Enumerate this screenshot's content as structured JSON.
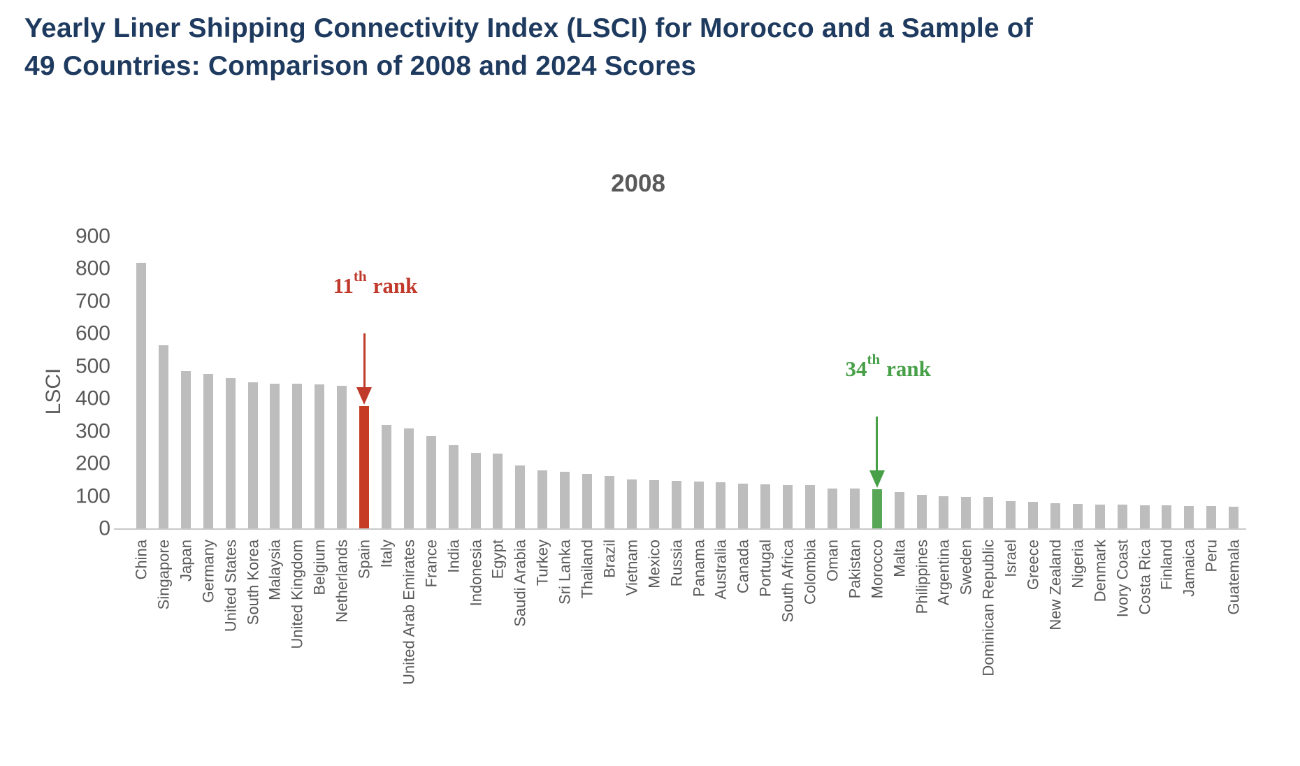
{
  "page": {
    "title_line1": "Yearly Liner Shipping Connectivity Index (LSCI) for Morocco and a Sample of",
    "title_line2": "49 Countries: Comparison of 2008 and 2024 Scores",
    "title_color": "#1e3a5f"
  },
  "chart_data": {
    "type": "bar",
    "title": "2008",
    "ylabel": "LSCI",
    "xlabel": "",
    "ylim": [
      0,
      900
    ],
    "yticks": [
      0,
      100,
      200,
      300,
      400,
      500,
      600,
      700,
      800,
      900
    ],
    "grid": false,
    "legend": null,
    "categories": [
      "China",
      "Singapore",
      "Japan",
      "Germany",
      "United States",
      "South Korea",
      "Malaysia",
      "United Kingdom",
      "Belgium",
      "Netherlands",
      "Spain",
      "Italy",
      "United Arab Emirates",
      "France",
      "India",
      "Indonesia",
      "Egypt",
      "Saudi Arabia",
      "Turkey",
      "Sri Lanka",
      "Thailand",
      "Brazil",
      "Vietnam",
      "Mexico",
      "Russia",
      "Panama",
      "Australia",
      "Canada",
      "Portugal",
      "South Africa",
      "Colombia",
      "Oman",
      "Pakistan",
      "Morocco",
      "Malta",
      "Philippines",
      "Argentina",
      "Sweden",
      "Dominican Republic",
      "Israel",
      "Greece",
      "New Zealand",
      "Nigeria",
      "Denmark",
      "Ivory Coast",
      "Costa Rica",
      "Finland",
      "Jamaica",
      "Peru",
      "Guatemala"
    ],
    "values": [
      820,
      565,
      487,
      477,
      465,
      452,
      448,
      447,
      446,
      440,
      378,
      320,
      310,
      285,
      258,
      235,
      232,
      196,
      180,
      176,
      170,
      163,
      152,
      150,
      148,
      147,
      145,
      140,
      137,
      136,
      135,
      125,
      124,
      122,
      113,
      105,
      102,
      100,
      98,
      85,
      84,
      80,
      78,
      76,
      76,
      74,
      74,
      72,
      70,
      68
    ],
    "default_bar_color": "#bdbdbd",
    "axis_text_color": "#595959",
    "axis_line_color": "#c9c9c9",
    "highlights": [
      {
        "index": 10,
        "category": "Spain",
        "color": "#c53b23",
        "annotation": {
          "rank_number": "11",
          "suffix": "th",
          "label": "rank",
          "full_text": "11th rank",
          "text_color": "#c0392b"
        }
      },
      {
        "index": 33,
        "category": "Morocco",
        "color": "#57a757",
        "annotation": {
          "rank_number": "34",
          "suffix": "th",
          "label": "rank",
          "full_text": "34th rank",
          "text_color": "#47a047"
        }
      }
    ]
  }
}
